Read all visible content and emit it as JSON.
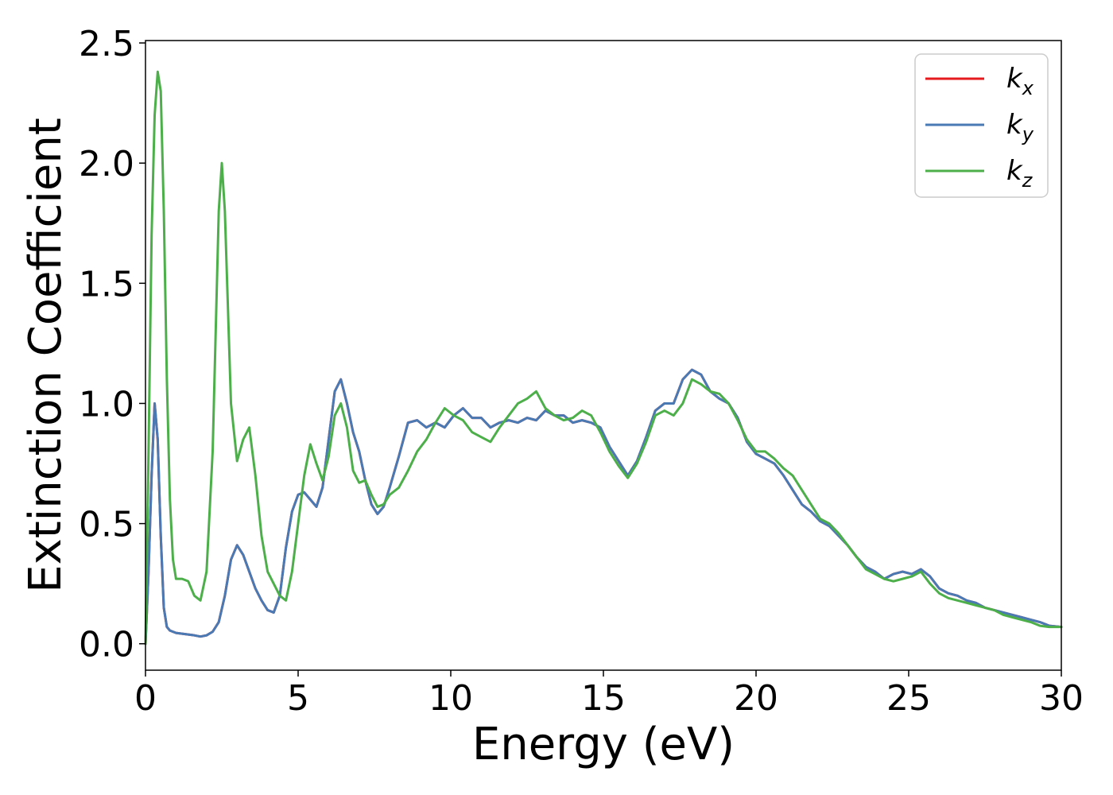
{
  "chart_data": {
    "type": "line",
    "title": "",
    "xlabel": "Energy (eV)",
    "ylabel": "Extinction Coefficient",
    "xlim": [
      0,
      30
    ],
    "ylim": [
      -0.11,
      2.51
    ],
    "xticks": [
      0,
      5,
      10,
      15,
      20,
      25,
      30
    ],
    "yticks": [
      0.0,
      0.5,
      1.0,
      1.5,
      2.0,
      2.5
    ],
    "xtick_labels": [
      "0",
      "5",
      "10",
      "15",
      "20",
      "25",
      "30"
    ],
    "ytick_labels": [
      "0.0",
      "0.5",
      "1.0",
      "1.5",
      "2.0",
      "2.5"
    ],
    "grid": false,
    "legend_position": "top-right",
    "series": [
      {
        "name": "k",
        "subscript": "x",
        "color": "#e41a1c",
        "x": [
          0,
          0.1,
          0.2,
          0.3,
          0.4,
          0.5,
          0.6,
          0.7,
          0.8,
          1.0,
          1.3,
          1.6,
          1.8,
          2.0,
          2.2,
          2.4,
          2.6,
          2.8,
          3.0,
          3.2,
          3.4,
          3.6,
          3.8,
          4.0,
          4.2,
          4.4,
          4.6,
          4.8,
          5.0,
          5.2,
          5.4,
          5.6,
          5.8,
          6.0,
          6.2,
          6.4,
          6.6,
          6.8,
          7.0,
          7.2,
          7.4,
          7.6,
          7.8,
          8.0,
          8.3,
          8.6,
          8.9,
          9.2,
          9.5,
          9.8,
          10.1,
          10.4,
          10.7,
          11.0,
          11.3,
          11.6,
          11.9,
          12.2,
          12.5,
          12.8,
          13.1,
          13.4,
          13.7,
          14.0,
          14.3,
          14.6,
          14.9,
          15.2,
          15.5,
          15.8,
          16.1,
          16.4,
          16.7,
          17.0,
          17.3,
          17.6,
          17.9,
          18.2,
          18.5,
          18.8,
          19.1,
          19.4,
          19.7,
          20.0,
          20.3,
          20.6,
          20.9,
          21.2,
          21.5,
          21.8,
          22.1,
          22.4,
          22.7,
          23.0,
          23.3,
          23.6,
          23.9,
          24.2,
          24.5,
          24.8,
          25.1,
          25.4,
          25.7,
          26.0,
          26.3,
          26.6,
          26.9,
          27.2,
          27.5,
          27.8,
          28.1,
          28.4,
          28.7,
          29.0,
          29.3,
          29.6,
          30.0
        ],
        "y": [
          0.0,
          0.3,
          0.7,
          1.0,
          0.85,
          0.45,
          0.15,
          0.07,
          0.055,
          0.045,
          0.04,
          0.035,
          0.03,
          0.035,
          0.05,
          0.09,
          0.2,
          0.35,
          0.41,
          0.37,
          0.3,
          0.23,
          0.18,
          0.14,
          0.13,
          0.2,
          0.4,
          0.55,
          0.62,
          0.63,
          0.6,
          0.57,
          0.65,
          0.85,
          1.05,
          1.1,
          1.0,
          0.88,
          0.8,
          0.68,
          0.58,
          0.54,
          0.57,
          0.65,
          0.78,
          0.92,
          0.93,
          0.9,
          0.92,
          0.9,
          0.95,
          0.98,
          0.94,
          0.94,
          0.9,
          0.92,
          0.93,
          0.92,
          0.94,
          0.93,
          0.97,
          0.95,
          0.95,
          0.92,
          0.93,
          0.92,
          0.9,
          0.82,
          0.76,
          0.7,
          0.76,
          0.86,
          0.97,
          1.0,
          1.0,
          1.1,
          1.14,
          1.12,
          1.05,
          1.02,
          1.0,
          0.94,
          0.84,
          0.79,
          0.77,
          0.75,
          0.7,
          0.64,
          0.58,
          0.55,
          0.51,
          0.49,
          0.45,
          0.41,
          0.36,
          0.32,
          0.3,
          0.27,
          0.29,
          0.3,
          0.29,
          0.31,
          0.28,
          0.23,
          0.21,
          0.2,
          0.18,
          0.17,
          0.15,
          0.14,
          0.13,
          0.12,
          0.11,
          0.1,
          0.09,
          0.075,
          0.07
        ]
      },
      {
        "name": "k",
        "subscript": "y",
        "color": "#4a7ab4",
        "x": [
          0,
          0.1,
          0.2,
          0.3,
          0.4,
          0.5,
          0.6,
          0.7,
          0.8,
          1.0,
          1.3,
          1.6,
          1.8,
          2.0,
          2.2,
          2.4,
          2.6,
          2.8,
          3.0,
          3.2,
          3.4,
          3.6,
          3.8,
          4.0,
          4.2,
          4.4,
          4.6,
          4.8,
          5.0,
          5.2,
          5.4,
          5.6,
          5.8,
          6.0,
          6.2,
          6.4,
          6.6,
          6.8,
          7.0,
          7.2,
          7.4,
          7.6,
          7.8,
          8.0,
          8.3,
          8.6,
          8.9,
          9.2,
          9.5,
          9.8,
          10.1,
          10.4,
          10.7,
          11.0,
          11.3,
          11.6,
          11.9,
          12.2,
          12.5,
          12.8,
          13.1,
          13.4,
          13.7,
          14.0,
          14.3,
          14.6,
          14.9,
          15.2,
          15.5,
          15.8,
          16.1,
          16.4,
          16.7,
          17.0,
          17.3,
          17.6,
          17.9,
          18.2,
          18.5,
          18.8,
          19.1,
          19.4,
          19.7,
          20.0,
          20.3,
          20.6,
          20.9,
          21.2,
          21.5,
          21.8,
          22.1,
          22.4,
          22.7,
          23.0,
          23.3,
          23.6,
          23.9,
          24.2,
          24.5,
          24.8,
          25.1,
          25.4,
          25.7,
          26.0,
          26.3,
          26.6,
          26.9,
          27.2,
          27.5,
          27.8,
          28.1,
          28.4,
          28.7,
          29.0,
          29.3,
          29.6,
          30.0
        ],
        "y": [
          0.0,
          0.3,
          0.7,
          1.0,
          0.85,
          0.45,
          0.15,
          0.07,
          0.055,
          0.045,
          0.04,
          0.035,
          0.03,
          0.035,
          0.05,
          0.09,
          0.2,
          0.35,
          0.41,
          0.37,
          0.3,
          0.23,
          0.18,
          0.14,
          0.13,
          0.2,
          0.4,
          0.55,
          0.62,
          0.63,
          0.6,
          0.57,
          0.65,
          0.85,
          1.05,
          1.1,
          1.0,
          0.88,
          0.8,
          0.68,
          0.58,
          0.54,
          0.57,
          0.65,
          0.78,
          0.92,
          0.93,
          0.9,
          0.92,
          0.9,
          0.95,
          0.98,
          0.94,
          0.94,
          0.9,
          0.92,
          0.93,
          0.92,
          0.94,
          0.93,
          0.97,
          0.95,
          0.95,
          0.92,
          0.93,
          0.92,
          0.9,
          0.82,
          0.76,
          0.7,
          0.76,
          0.86,
          0.97,
          1.0,
          1.0,
          1.1,
          1.14,
          1.12,
          1.05,
          1.02,
          1.0,
          0.94,
          0.84,
          0.79,
          0.77,
          0.75,
          0.7,
          0.64,
          0.58,
          0.55,
          0.51,
          0.49,
          0.45,
          0.41,
          0.36,
          0.32,
          0.3,
          0.27,
          0.29,
          0.3,
          0.29,
          0.31,
          0.28,
          0.23,
          0.21,
          0.2,
          0.18,
          0.17,
          0.15,
          0.14,
          0.13,
          0.12,
          0.11,
          0.1,
          0.09,
          0.075,
          0.07
        ]
      },
      {
        "name": "k",
        "subscript": "z",
        "color": "#4daf4a",
        "x": [
          0,
          0.1,
          0.2,
          0.3,
          0.4,
          0.5,
          0.6,
          0.7,
          0.8,
          0.9,
          1.0,
          1.2,
          1.4,
          1.6,
          1.8,
          2.0,
          2.2,
          2.4,
          2.5,
          2.6,
          2.8,
          3.0,
          3.2,
          3.4,
          3.6,
          3.8,
          4.0,
          4.2,
          4.4,
          4.6,
          4.8,
          5.0,
          5.2,
          5.4,
          5.6,
          5.8,
          6.0,
          6.2,
          6.4,
          6.6,
          6.8,
          7.0,
          7.2,
          7.4,
          7.6,
          7.8,
          8.0,
          8.3,
          8.6,
          8.9,
          9.2,
          9.5,
          9.8,
          10.1,
          10.4,
          10.7,
          11.0,
          11.3,
          11.6,
          11.9,
          12.2,
          12.5,
          12.8,
          13.1,
          13.4,
          13.7,
          14.0,
          14.3,
          14.6,
          14.9,
          15.2,
          15.5,
          15.8,
          16.1,
          16.4,
          16.7,
          17.0,
          17.3,
          17.6,
          17.9,
          18.2,
          18.5,
          18.8,
          19.1,
          19.4,
          19.7,
          20.0,
          20.3,
          20.6,
          20.9,
          21.2,
          21.5,
          21.8,
          22.1,
          22.4,
          22.7,
          23.0,
          23.3,
          23.6,
          23.9,
          24.2,
          24.5,
          24.8,
          25.1,
          25.4,
          25.7,
          26.0,
          26.3,
          26.6,
          26.9,
          27.2,
          27.5,
          27.8,
          28.1,
          28.4,
          28.7,
          29.0,
          29.3,
          29.6,
          30.0
        ],
        "y": [
          0.0,
          0.8,
          1.7,
          2.2,
          2.38,
          2.3,
          1.8,
          1.1,
          0.6,
          0.35,
          0.27,
          0.27,
          0.26,
          0.2,
          0.18,
          0.3,
          0.8,
          1.8,
          2.0,
          1.8,
          1.0,
          0.76,
          0.85,
          0.9,
          0.7,
          0.45,
          0.3,
          0.25,
          0.2,
          0.18,
          0.3,
          0.5,
          0.7,
          0.83,
          0.75,
          0.68,
          0.78,
          0.95,
          1.0,
          0.9,
          0.72,
          0.67,
          0.68,
          0.62,
          0.57,
          0.58,
          0.62,
          0.65,
          0.72,
          0.8,
          0.85,
          0.92,
          0.98,
          0.95,
          0.93,
          0.88,
          0.86,
          0.84,
          0.9,
          0.95,
          1.0,
          1.02,
          1.05,
          0.98,
          0.95,
          0.93,
          0.94,
          0.97,
          0.95,
          0.88,
          0.8,
          0.74,
          0.69,
          0.75,
          0.84,
          0.95,
          0.97,
          0.95,
          1.0,
          1.1,
          1.08,
          1.05,
          1.04,
          1.0,
          0.93,
          0.85,
          0.8,
          0.8,
          0.77,
          0.73,
          0.7,
          0.64,
          0.58,
          0.52,
          0.5,
          0.46,
          0.41,
          0.36,
          0.31,
          0.29,
          0.27,
          0.26,
          0.27,
          0.28,
          0.3,
          0.25,
          0.21,
          0.19,
          0.18,
          0.17,
          0.16,
          0.15,
          0.14,
          0.12,
          0.11,
          0.1,
          0.09,
          0.075,
          0.07,
          0.07
        ]
      }
    ]
  }
}
